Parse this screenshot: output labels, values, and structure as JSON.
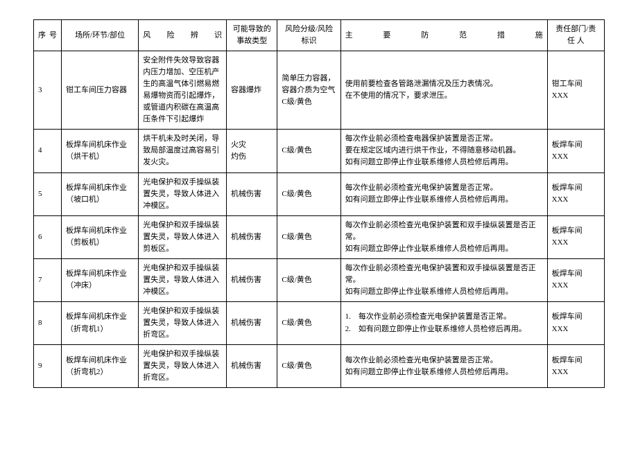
{
  "headers": {
    "seq": "序 号",
    "place": "场所/环节/部位",
    "hazard": "风 险 辨 识",
    "accident": "可能导致的事故类型",
    "level": "风险分级/风险标识",
    "measure": "主 要 防 范 措 施",
    "resp": "责任部门/责 任 人"
  },
  "rows": [
    {
      "seq": "3",
      "place": "钳工车间压力容器",
      "hazard": "安全附件失效导致容器内压力增加、空压机产生的高温气体引燃易燃易爆物资而引起爆炸，或管道内积碳在高温高压条件下引起爆炸",
      "accident": "容器爆炸",
      "level": "简单压力容器，容器介质为空气C级/黄色",
      "measure": "使用前要检查各管路泄漏情况及压力表情况。\n在不使用的情况下，要求泄压。",
      "resp": "钳工车间\nXXX"
    },
    {
      "seq": "4",
      "place": "板焊车间机床作业（烘干机）",
      "hazard": "烘干机未及时关闭，导致局部温度过高容易引发火灾。",
      "accident": "火灾\n灼伤",
      "level": "C级/黄色",
      "measure": "每次作业前必须检查电器保护装置是否正常。\n要在规定区域内进行烘干作业，不得随意移动机器。\n如有问题立即停止作业联系维修人员检修后再用。",
      "resp": "板焊车间\nXXX"
    },
    {
      "seq": "5",
      "place": "板焊车间机床作业（坡口机）",
      "hazard": "光电保护和双手操纵装置失灵，导致人体进入冲模区。",
      "accident": "机械伤害",
      "level": "C级/黄色",
      "measure": "每次作业前必须检查光电保护装置是否正常。\n如有问题立即停止作业联系维修人员检修后再用。",
      "resp": "板焊车间\nXXX"
    },
    {
      "seq": "6",
      "place": "板焊车间机床作业（剪板机）",
      "hazard": "光电保护和双手操纵装置失灵，导致人体进入剪板区。",
      "accident": "机械伤害",
      "level": "C级/黄色",
      "measure": "每次作业前必须检查光电保护装置和双手操纵装置是否正常。\n如有问题立即停止作业联系维修人员检修后再用。",
      "resp": "板焊车间\nXXX"
    },
    {
      "seq": "7",
      "place": "板焊车间机床作业（冲床）",
      "hazard": "光电保护和双手操纵装置失灵，导致人体进入冲模区。",
      "accident": "机械伤害",
      "level": "C级/黄色",
      "measure": "每次作业前必须检查光电保护装置和双手操纵装置是否正常。\n如有问题立即停止作业联系维修人员检修后再用。",
      "resp": "板焊车间\nXXX"
    },
    {
      "seq": "8",
      "place": "板焊车间机床作业（折弯机1）",
      "hazard": "光电保护和双手操纵装置失灵，导致人体进入折弯区。",
      "accident": "机械伤害",
      "level": "C级/黄色",
      "measure": "1.　每次作业前必须检查光电保护装置是否正常。\n2.　如有问题立即停止作业联系维修人员检修后再用。",
      "resp": "板焊车间\nXXX"
    },
    {
      "seq": "9",
      "place": "板焊车间机床作业（折弯机2）",
      "hazard": "光电保护和双手操纵装置失灵，导致人体进入折弯区。",
      "accident": "机械伤害",
      "level": "C级/黄色",
      "measure": "每次作业前必须检查光电保护装置是否正常。\n如有问题立即停止作业联系维修人员检修后再用。",
      "resp": "板焊车间\nXXX"
    }
  ]
}
